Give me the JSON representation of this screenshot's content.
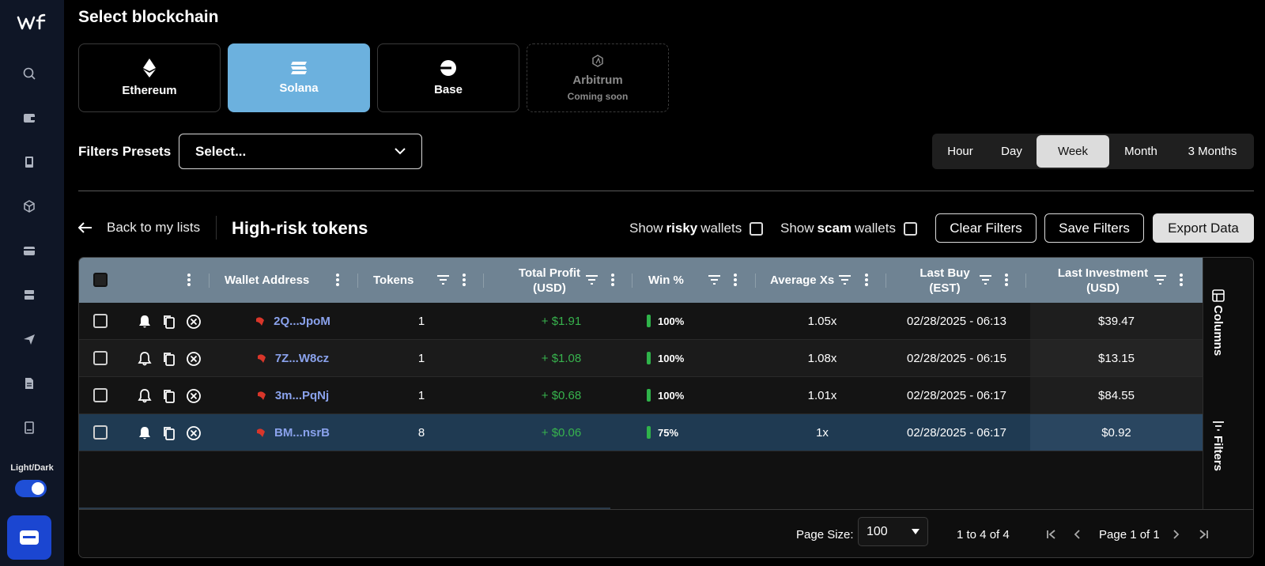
{
  "sidebar": {
    "logo": "wf",
    "theme_label": "Light/Dark",
    "icons": [
      "search-icon",
      "wallet-icon",
      "book-icon",
      "cube-icon",
      "card-icon",
      "server-icon",
      "send-icon",
      "document-icon",
      "book-2-icon"
    ]
  },
  "header": {
    "title": "Select blockchain"
  },
  "chains": [
    {
      "name": "Ethereum",
      "sub": ""
    },
    {
      "name": "Solana",
      "sub": ""
    },
    {
      "name": "Base",
      "sub": ""
    },
    {
      "name": "Arbitrum",
      "sub": "Coming soon"
    }
  ],
  "filters": {
    "presets_label": "Filters Presets",
    "select_value": "Select..."
  },
  "periods": [
    "Hour",
    "Day",
    "Week",
    "Month",
    "3 Months"
  ],
  "selected_period": "Week",
  "list": {
    "back_label": "Back to my lists",
    "title": "High-risk tokens",
    "risky": {
      "pre": "Show",
      "bold": "risky",
      "post": "wallets"
    },
    "scam": {
      "pre": "Show",
      "bold": "scam",
      "post": "wallets"
    },
    "clear_filters": "Clear Filters",
    "save_filters": "Save Filters",
    "export_data": "Export Data"
  },
  "table": {
    "columns": {
      "wallet": "Wallet Address",
      "tokens": "Tokens",
      "profit": "Total Profit (USD)",
      "win": "Win %",
      "avg": "Average Xs",
      "last_buy": "Last Buy (EST)",
      "last_inv": "Last Investment (USD)"
    },
    "rows": [
      {
        "wallet": "2Q...JpoM",
        "tokens": "1",
        "profit": "+ $1.91",
        "win": "100%",
        "avg": "1.05x",
        "last_buy": "02/28/2025 - 06:13",
        "last_inv": "$39.47"
      },
      {
        "wallet": "7Z...W8cz",
        "tokens": "1",
        "profit": "+ $1.08",
        "win": "100%",
        "avg": "1.08x",
        "last_buy": "02/28/2025 - 06:15",
        "last_inv": "$13.15"
      },
      {
        "wallet": "3m...PqNj",
        "tokens": "1",
        "profit": "+ $0.68",
        "win": "100%",
        "avg": "1.01x",
        "last_buy": "02/28/2025 - 06:17",
        "last_inv": "$84.55"
      },
      {
        "wallet": "BM...nsrB",
        "tokens": "8",
        "profit": "+ $0.06",
        "win": "75%",
        "avg": "1x",
        "last_buy": "02/28/2025 - 06:17",
        "last_inv": "$0.92"
      }
    ],
    "side_columns": "Columns",
    "side_filters": "Filters"
  },
  "footer": {
    "page_size_label": "Page Size:",
    "page_size": "100",
    "range": "1 to 4 of 4",
    "page_info": "Page 1 of 1"
  },
  "colors": {
    "accent": "#6cb1de",
    "profit": "#37b24d",
    "wallet_link": "#8aa2ec",
    "header": "#6f8393",
    "selected_row": "#1f3a52"
  }
}
